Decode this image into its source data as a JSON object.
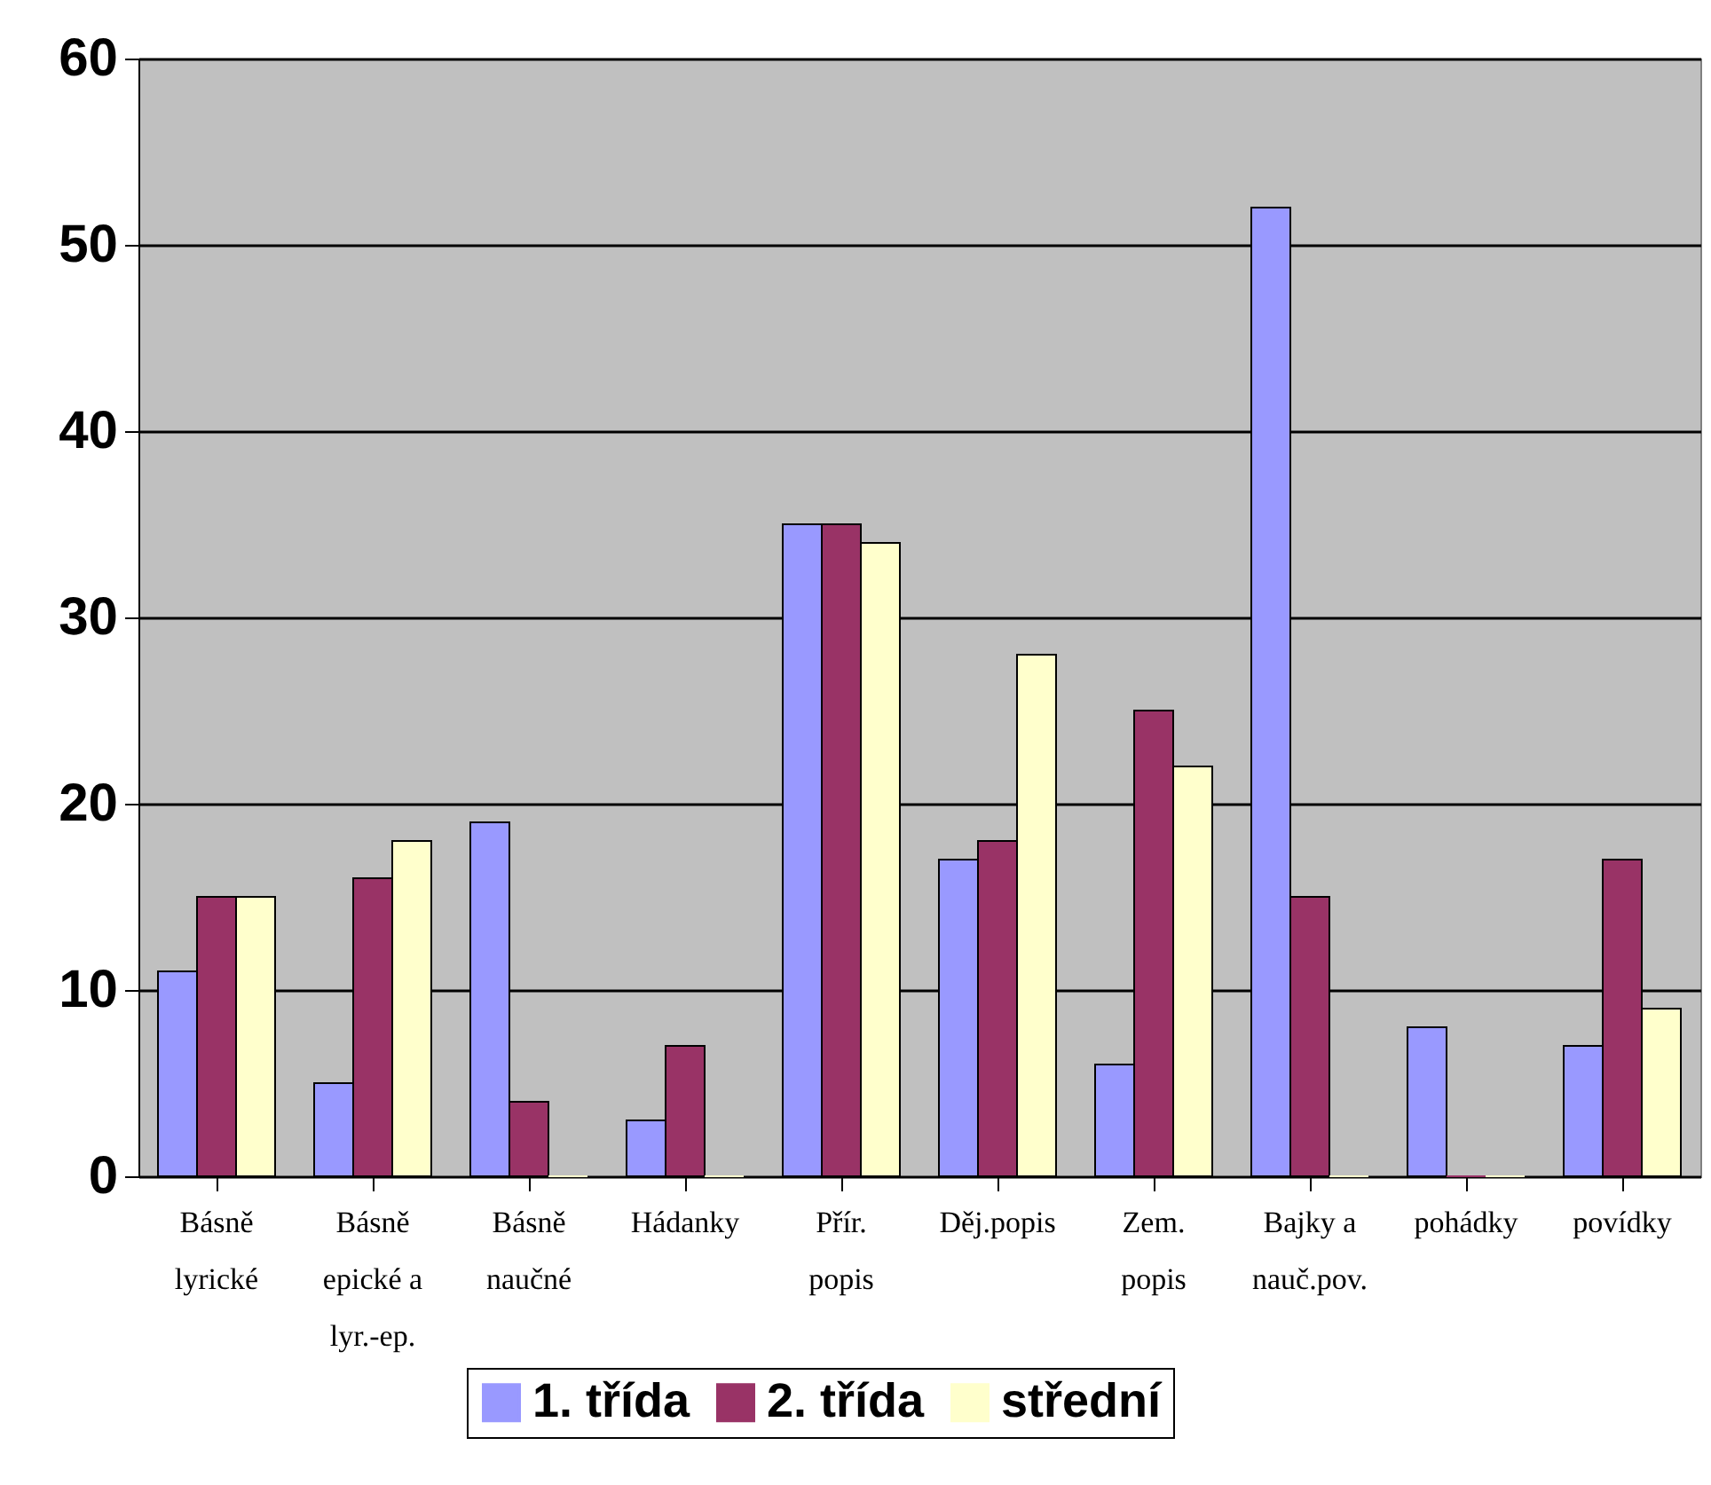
{
  "chart_data": {
    "type": "bar",
    "categories": [
      "Básně lyrické",
      "Básně epické a lyr.-ep.",
      "Básně naučné",
      "Hádanky",
      "Přír. popis",
      "Děj.popis",
      "Zem. popis",
      "Bajky a nauč.pov.",
      "pohádky",
      "povídky"
    ],
    "series": [
      {
        "name": "1. třída",
        "color": "#9999ff",
        "values": [
          11,
          5,
          19,
          3,
          35,
          17,
          6,
          52,
          8,
          7
        ]
      },
      {
        "name": "2. třída",
        "color": "#993366",
        "values": [
          15,
          16,
          4,
          7,
          35,
          18,
          25,
          15,
          0,
          17
        ]
      },
      {
        "name": "střední",
        "color": "#ffffcc",
        "values": [
          15,
          18,
          0,
          0,
          34,
          28,
          22,
          0,
          0,
          9
        ]
      }
    ],
    "ylim": [
      0,
      60
    ],
    "yticks": [
      0,
      10,
      20,
      30,
      40,
      50,
      60
    ],
    "grid": "y",
    "legend": "bottom"
  }
}
